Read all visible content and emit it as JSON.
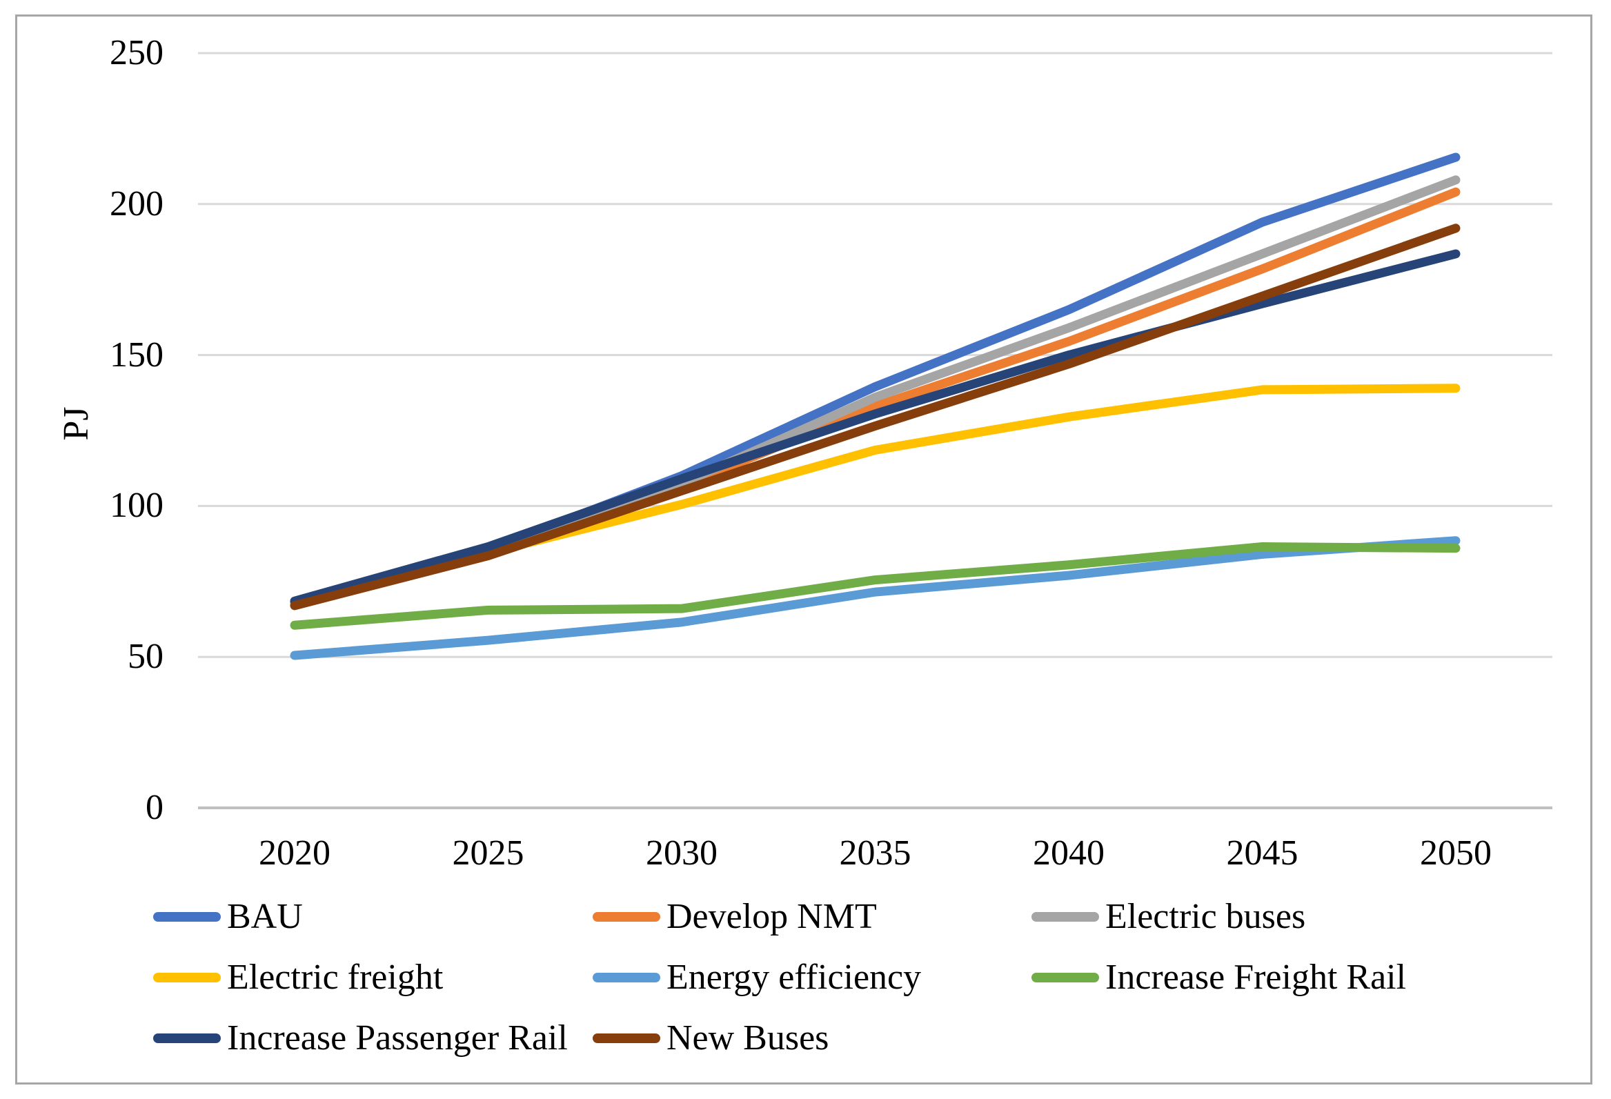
{
  "chart_data": {
    "type": "line",
    "title": "",
    "xlabel": "",
    "ylabel": "PJ",
    "ylim": [
      0,
      250
    ],
    "y_ticks": [
      0,
      50,
      100,
      150,
      200,
      250
    ],
    "x": [
      "2020",
      "2025",
      "2030",
      "2035",
      "2040",
      "2045",
      "2050"
    ],
    "grid": "horizontal",
    "legend_position": "bottom",
    "legend_columns": 3,
    "series": [
      {
        "name": "BAU",
        "color": "#4472C4",
        "values": [
          68,
          85.5,
          110,
          139.5,
          165,
          194,
          215.5
        ]
      },
      {
        "name": "Develop NMT",
        "color": "#ED7D31",
        "values": [
          67.5,
          85,
          106.5,
          133,
          154.5,
          178.5,
          204
        ]
      },
      {
        "name": "Electric buses",
        "color": "#A5A5A5",
        "values": [
          67.5,
          85,
          107.5,
          136,
          159,
          183.5,
          208
        ]
      },
      {
        "name": "Electric freight",
        "color": "#FFC000",
        "values": [
          67,
          84.5,
          100.5,
          118.5,
          129.5,
          138.5,
          139
        ]
      },
      {
        "name": "Energy efficiency",
        "color": "#5B9BD5",
        "values": [
          50.5,
          55.5,
          61.5,
          71.5,
          77,
          84,
          88.5
        ]
      },
      {
        "name": "Increase Freight Rail",
        "color": "#70AD47",
        "values": [
          60.5,
          65.5,
          66,
          75.5,
          80.5,
          86.5,
          86
        ]
      },
      {
        "name": "Increase Passenger Rail",
        "color": "#264478",
        "values": [
          68.5,
          86.5,
          109,
          130.5,
          150,
          167,
          183.5
        ]
      },
      {
        "name": "New Buses",
        "color": "#873E0D",
        "values": [
          67,
          83.5,
          105,
          126.5,
          147,
          169.5,
          192
        ]
      }
    ],
    "colors": {
      "frame": "#A6A6A6",
      "gridline": "#D9D9D9",
      "axis_line": "#BFBFBF",
      "text": "#000000"
    }
  }
}
